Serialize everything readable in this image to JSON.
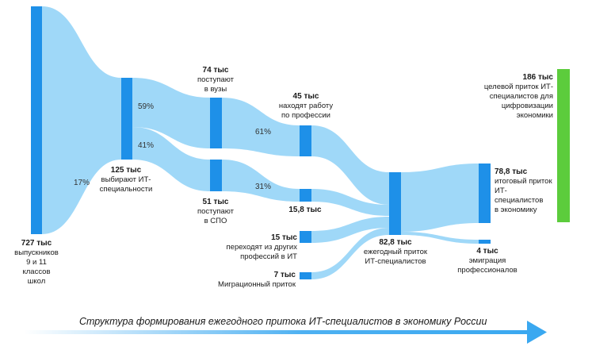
{
  "caption": "Структура формирования ежегодного притока ИТ-специалистов в экономику России",
  "nodes": {
    "graduates": {
      "value": "727 тыс",
      "lines": [
        "выпускников",
        "9 и 11 классов",
        "школ"
      ]
    },
    "choose_it": {
      "value": "125 тыс",
      "lines": [
        "выбирают ИТ-",
        "специальности"
      ]
    },
    "universities": {
      "value": "74 тыс",
      "lines": [
        "поступают",
        "в вузы"
      ]
    },
    "spo": {
      "value": "51 тыс",
      "lines": [
        "поступают",
        "в СПО"
      ]
    },
    "find_job": {
      "value": "45 тыс",
      "lines": [
        "находят работу",
        "по профессии"
      ]
    },
    "spo_out": {
      "value": "15,8 тыс",
      "lines": []
    },
    "other_prof": {
      "value": "15 тыс",
      "lines": [
        "переходят из других",
        "профессий в ИТ"
      ]
    },
    "migration": {
      "value": "7 тыс",
      "lines": [
        "Миграционный приток"
      ]
    },
    "annual_inflow": {
      "value": "82,8 тыс",
      "lines": [
        "ежегодный приток",
        "ИТ-специалистов"
      ]
    },
    "total_inflow": {
      "value": "78,8 тыс",
      "lines": [
        "итоговый приток",
        "ИТ-",
        "специалистов",
        "в экономику"
      ]
    },
    "emigration": {
      "value": "4 тыс",
      "lines": [
        "эмиграция",
        "профессионалов"
      ]
    },
    "target": {
      "value": "186 тыс",
      "lines": [
        "целевой приток ИТ-",
        "специалистов для",
        "цифровизации",
        "экономики"
      ]
    }
  },
  "percentages": {
    "graduates_to_it": "17%",
    "to_universities": "59%",
    "to_spo": "41%",
    "university_employment": "61%",
    "spo_employment": "31%"
  },
  "colors": {
    "node": "#1e90e8",
    "flow": "#9fd8f8",
    "target": "#5ccc3c",
    "arrow": "#3aa8f0"
  }
}
